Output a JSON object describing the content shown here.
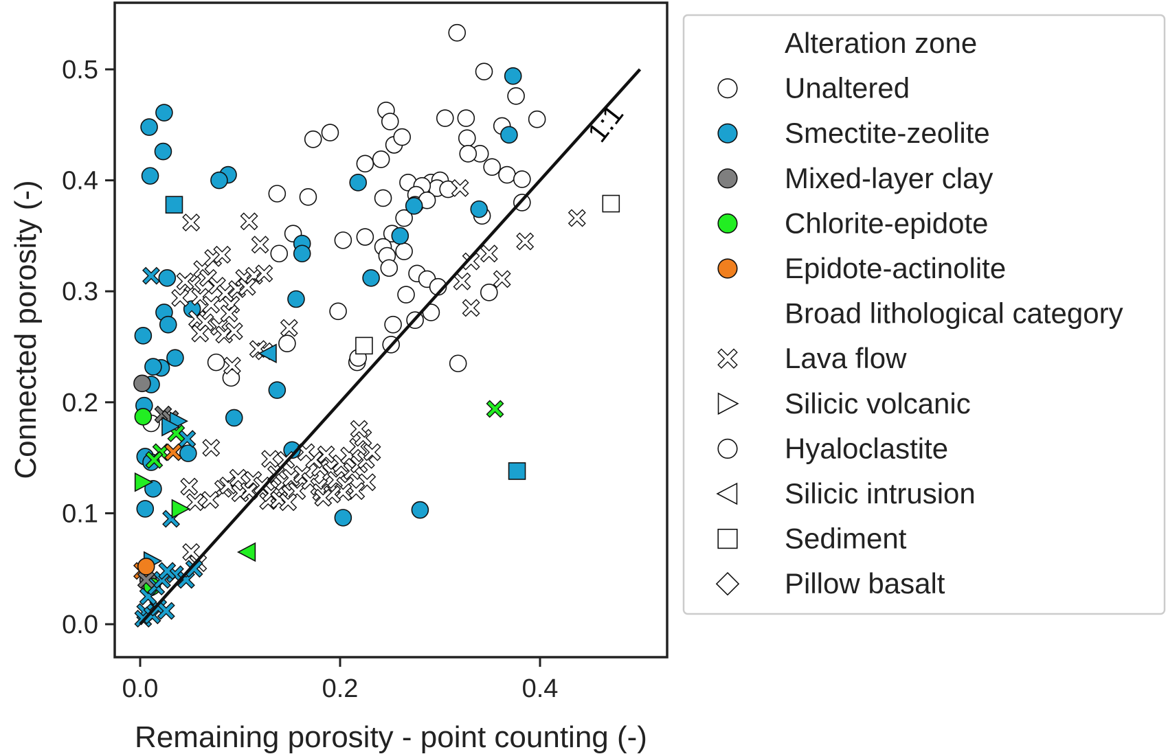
{
  "chart_data": {
    "type": "scatter",
    "xlabel": "Remaining porosity - point counting (-)",
    "ylabel": "Connected porosity (-)",
    "xlim": [
      -0.05,
      0.53
    ],
    "ylim": [
      -0.03,
      0.56
    ],
    "x_ticks": [
      0.0,
      0.2,
      0.4
    ],
    "x_tick_labels": [
      "0.0",
      "0.2",
      "0.4"
    ],
    "y_ticks": [
      0.0,
      0.1,
      0.2,
      0.3,
      0.4,
      0.5
    ],
    "y_tick_labels": [
      "0.0",
      "0.1",
      "0.2",
      "0.3",
      "0.4",
      "0.5"
    ],
    "grid": false,
    "reference_line": {
      "label": "1:1",
      "x": [
        0,
        0.5
      ],
      "y": [
        0,
        0.5
      ]
    },
    "legend": {
      "placement": "outside-right",
      "groups": [
        {
          "title": "Alteration zone",
          "entries": [
            {
              "label": "Unaltered",
              "marker": "circle",
              "color": "#ffffff"
            },
            {
              "label": "Smectite-zeolite",
              "marker": "circle",
              "color": "#1ba1d0"
            },
            {
              "label": "Mixed-layer clay",
              "marker": "circle",
              "color": "#7f7f7f"
            },
            {
              "label": "Chlorite-epidote",
              "marker": "circle",
              "color": "#22ee22"
            },
            {
              "label": "Epidote-actinolite",
              "marker": "circle",
              "color": "#f07f1e"
            }
          ]
        },
        {
          "title": "Broad lithological category",
          "entries": [
            {
              "label": "Lava flow",
              "marker": "x",
              "color": "#ffffff"
            },
            {
              "label": "Silicic volcanic",
              "marker": "tri-right",
              "color": "#ffffff"
            },
            {
              "label": "Hyaloclastite",
              "marker": "circle",
              "color": "#ffffff"
            },
            {
              "label": "Silicic intrusion",
              "marker": "tri-left",
              "color": "#ffffff"
            },
            {
              "label": "Sediment",
              "marker": "square",
              "color": "#ffffff"
            },
            {
              "label": "Pillow basalt",
              "marker": "diamond",
              "color": "#ffffff"
            }
          ]
        }
      ]
    },
    "colors": {
      "Unaltered": "#ffffff",
      "Smectite-zeolite": "#1ba1d0",
      "Mixed-layer clay": "#7f7f7f",
      "Chlorite-epidote": "#22ee22",
      "Epidote-actinolite": "#f07f1e"
    },
    "series": [
      {
        "name": "Unaltered",
        "marker": "circle",
        "points": [
          [
            0.317,
            0.533
          ],
          [
            0.344,
            0.498
          ],
          [
            0.376,
            0.476
          ],
          [
            0.397,
            0.455
          ],
          [
            0.362,
            0.449
          ],
          [
            0.305,
            0.456
          ],
          [
            0.326,
            0.456
          ],
          [
            0.246,
            0.463
          ],
          [
            0.25,
            0.453
          ],
          [
            0.19,
            0.443
          ],
          [
            0.173,
            0.437
          ],
          [
            0.254,
            0.432
          ],
          [
            0.262,
            0.439
          ],
          [
            0.327,
            0.438
          ],
          [
            0.34,
            0.424
          ],
          [
            0.328,
            0.424
          ],
          [
            0.241,
            0.419
          ],
          [
            0.225,
            0.415
          ],
          [
            0.352,
            0.412
          ],
          [
            0.367,
            0.405
          ],
          [
            0.382,
            0.401
          ],
          [
            0.268,
            0.398
          ],
          [
            0.291,
            0.398
          ],
          [
            0.3,
            0.4
          ],
          [
            0.297,
            0.393
          ],
          [
            0.282,
            0.395
          ],
          [
            0.308,
            0.392
          ],
          [
            0.276,
            0.387
          ],
          [
            0.275,
            0.378
          ],
          [
            0.287,
            0.382
          ],
          [
            0.243,
            0.384
          ],
          [
            0.168,
            0.385
          ],
          [
            0.137,
            0.388
          ],
          [
            0.382,
            0.38
          ],
          [
            0.342,
            0.368
          ],
          [
            0.264,
            0.366
          ],
          [
            0.252,
            0.352
          ],
          [
            0.153,
            0.352
          ],
          [
            0.203,
            0.346
          ],
          [
            0.225,
            0.349
          ],
          [
            0.243,
            0.34
          ],
          [
            0.264,
            0.336
          ],
          [
            0.247,
            0.332
          ],
          [
            0.139,
            0.334
          ],
          [
            0.249,
            0.321
          ],
          [
            0.277,
            0.316
          ],
          [
            0.287,
            0.311
          ],
          [
            0.298,
            0.304
          ],
          [
            0.349,
            0.299
          ],
          [
            0.266,
            0.297
          ],
          [
            0.198,
            0.282
          ],
          [
            0.291,
            0.281
          ],
          [
            0.275,
            0.274
          ],
          [
            0.253,
            0.27
          ],
          [
            0.147,
            0.253
          ],
          [
            0.251,
            0.252
          ],
          [
            0.217,
            0.236
          ],
          [
            0.218,
            0.24
          ],
          [
            0.318,
            0.235
          ],
          [
            0.076,
            0.236
          ],
          [
            0.091,
            0.222
          ],
          [
            0.011,
            0.181
          ]
        ]
      },
      {
        "name": "Smectite-zeolite",
        "marker": "circle",
        "points": [
          [
            0.373,
            0.494
          ],
          [
            0.024,
            0.461
          ],
          [
            0.009,
            0.448
          ],
          [
            0.023,
            0.426
          ],
          [
            0.01,
            0.404
          ],
          [
            0.088,
            0.405
          ],
          [
            0.079,
            0.4
          ],
          [
            0.218,
            0.398
          ],
          [
            0.369,
            0.441
          ],
          [
            0.339,
            0.374
          ],
          [
            0.274,
            0.377
          ],
          [
            0.162,
            0.343
          ],
          [
            0.26,
            0.35
          ],
          [
            0.162,
            0.334
          ],
          [
            0.231,
            0.312
          ],
          [
            0.027,
            0.312
          ],
          [
            0.156,
            0.293
          ],
          [
            0.052,
            0.284
          ],
          [
            0.024,
            0.281
          ],
          [
            0.028,
            0.27
          ],
          [
            0.003,
            0.26
          ],
          [
            0.035,
            0.24
          ],
          [
            0.021,
            0.231
          ],
          [
            0.013,
            0.232
          ],
          [
            0.011,
            0.216
          ],
          [
            0.137,
            0.211
          ],
          [
            0.004,
            0.197
          ],
          [
            0.094,
            0.186
          ],
          [
            0.152,
            0.157
          ],
          [
            0.005,
            0.151
          ],
          [
            0.048,
            0.154
          ],
          [
            0.011,
            0.146
          ],
          [
            0.013,
            0.122
          ],
          [
            0.005,
            0.104
          ],
          [
            0.28,
            0.103
          ],
          [
            0.203,
            0.096
          ]
        ]
      },
      {
        "name": "Mixed-layer clay",
        "marker": "circle",
        "points": [
          [
            0.002,
            0.217
          ],
          [
            0.008,
            0.04
          ],
          [
            0.01,
            0.033
          ]
        ]
      },
      {
        "name": "Chlorite-epidote",
        "marker": "circle",
        "points": [
          [
            0.003,
            0.187
          ],
          [
            0.012,
            0.034
          ]
        ]
      },
      {
        "name": "Lava flow / unaltered",
        "marker": "x",
        "points": [
          [
            0.051,
            0.362
          ],
          [
            0.109,
            0.363
          ],
          [
            0.12,
            0.342
          ],
          [
            0.32,
            0.393
          ],
          [
            0.437,
            0.366
          ],
          [
            0.385,
            0.345
          ],
          [
            0.062,
            0.32
          ],
          [
            0.073,
            0.33
          ],
          [
            0.082,
            0.333
          ],
          [
            0.068,
            0.312
          ],
          [
            0.052,
            0.306
          ],
          [
            0.045,
            0.309
          ],
          [
            0.06,
            0.295
          ],
          [
            0.077,
            0.305
          ],
          [
            0.085,
            0.298
          ],
          [
            0.097,
            0.302
          ],
          [
            0.104,
            0.312
          ],
          [
            0.114,
            0.314
          ],
          [
            0.124,
            0.316
          ],
          [
            0.107,
            0.304
          ],
          [
            0.091,
            0.288
          ],
          [
            0.071,
            0.288
          ],
          [
            0.04,
            0.294
          ],
          [
            0.057,
            0.275
          ],
          [
            0.065,
            0.272
          ],
          [
            0.079,
            0.268
          ],
          [
            0.084,
            0.261
          ],
          [
            0.094,
            0.264
          ],
          [
            0.089,
            0.28
          ],
          [
            0.06,
            0.262
          ],
          [
            0.149,
            0.267
          ],
          [
            0.124,
            0.246
          ],
          [
            0.118,
            0.248
          ],
          [
            0.092,
            0.233
          ],
          [
            0.331,
            0.327
          ],
          [
            0.349,
            0.334
          ],
          [
            0.362,
            0.311
          ],
          [
            0.322,
            0.309
          ],
          [
            0.331,
            0.285
          ],
          [
            0.071,
            0.159
          ],
          [
            0.049,
            0.124
          ],
          [
            0.083,
            0.122
          ],
          [
            0.055,
            0.11
          ],
          [
            0.07,
            0.112
          ],
          [
            0.088,
            0.125
          ],
          [
            0.1,
            0.118
          ],
          [
            0.098,
            0.132
          ],
          [
            0.109,
            0.12
          ],
          [
            0.113,
            0.13
          ],
          [
            0.122,
            0.125
          ],
          [
            0.128,
            0.111
          ],
          [
            0.131,
            0.118
          ],
          [
            0.139,
            0.122
          ],
          [
            0.136,
            0.135
          ],
          [
            0.144,
            0.128
          ],
          [
            0.13,
            0.149
          ],
          [
            0.146,
            0.148
          ],
          [
            0.151,
            0.132
          ],
          [
            0.162,
            0.135
          ],
          [
            0.157,
            0.12
          ],
          [
            0.17,
            0.129
          ],
          [
            0.179,
            0.124
          ],
          [
            0.181,
            0.119
          ],
          [
            0.18,
            0.141
          ],
          [
            0.186,
            0.153
          ],
          [
            0.191,
            0.137
          ],
          [
            0.196,
            0.13
          ],
          [
            0.201,
            0.145
          ],
          [
            0.205,
            0.125
          ],
          [
            0.209,
            0.152
          ],
          [
            0.212,
            0.138
          ],
          [
            0.218,
            0.16
          ],
          [
            0.219,
            0.144
          ],
          [
            0.226,
            0.148
          ],
          [
            0.232,
            0.155
          ],
          [
            0.227,
            0.128
          ],
          [
            0.216,
            0.12
          ],
          [
            0.203,
            0.119
          ],
          [
            0.192,
            0.117
          ],
          [
            0.183,
            0.114
          ],
          [
            0.174,
            0.148
          ],
          [
            0.166,
            0.155
          ],
          [
            0.223,
            0.168
          ],
          [
            0.219,
            0.176
          ],
          [
            0.058,
            0.055
          ],
          [
            0.051,
            0.065
          ],
          [
            0.139,
            0.112
          ],
          [
            0.148,
            0.11
          ]
        ]
      },
      {
        "name": "Lava flow / smectite-zeolite",
        "marker": "x",
        "points": [
          [
            0.011,
            0.314
          ],
          [
            0.005,
            0.011
          ],
          [
            0.003,
            0.005
          ],
          [
            0.012,
            0.008
          ],
          [
            0.018,
            0.015
          ],
          [
            0.026,
            0.012
          ],
          [
            0.008,
            0.025
          ],
          [
            0.016,
            0.034
          ],
          [
            0.022,
            0.04
          ],
          [
            0.035,
            0.045
          ],
          [
            0.046,
            0.04
          ],
          [
            0.054,
            0.05
          ],
          [
            0.031,
            0.095
          ],
          [
            0.047,
            0.167
          ],
          [
            0.027,
            0.048
          ]
        ]
      },
      {
        "name": "Lava flow / chlorite-epidote",
        "marker": "x",
        "points": [
          [
            0.355,
            0.194
          ],
          [
            0.036,
            0.172
          ],
          [
            0.021,
            0.155
          ],
          [
            0.014,
            0.148
          ]
        ]
      },
      {
        "name": "Lava flow / epidote-actinolite",
        "marker": "x",
        "points": [
          [
            0.033,
            0.155
          ],
          [
            0.002,
            0.048
          ]
        ]
      },
      {
        "name": "Lava flow / mixed-layer clay",
        "marker": "x",
        "points": [
          [
            0.023,
            0.189
          ],
          [
            0.03,
            0.185
          ],
          [
            0.006,
            0.04
          ]
        ]
      },
      {
        "name": "Silicic volcanic / smectite-zeolite",
        "marker": "tri-right",
        "points": [
          [
            0.038,
            0.183
          ],
          [
            0.03,
            0.178
          ],
          [
            0.012,
            0.057
          ]
        ]
      },
      {
        "name": "Silicic volcanic / chlorite-epidote",
        "marker": "tri-right",
        "points": [
          [
            0.04,
            0.104
          ],
          [
            0.003,
            0.128
          ]
        ]
      },
      {
        "name": "Silicic intrusion / chlorite-epidote",
        "marker": "tri-left",
        "points": [
          [
            0.107,
            0.065
          ]
        ]
      },
      {
        "name": "Silicic intrusion / smectite-zeolite",
        "marker": "tri-left",
        "points": [
          [
            0.128,
            0.244
          ]
        ]
      },
      {
        "name": "Sediment / unaltered",
        "marker": "square",
        "points": [
          [
            0.471,
            0.379
          ],
          [
            0.224,
            0.251
          ]
        ]
      },
      {
        "name": "Sediment / smectite-zeolite",
        "marker": "square",
        "points": [
          [
            0.034,
            0.378
          ],
          [
            0.377,
            0.138
          ]
        ]
      },
      {
        "name": "Epidote-actinolite",
        "marker": "circle",
        "points": [
          [
            0.006,
            0.052
          ]
        ]
      }
    ]
  }
}
